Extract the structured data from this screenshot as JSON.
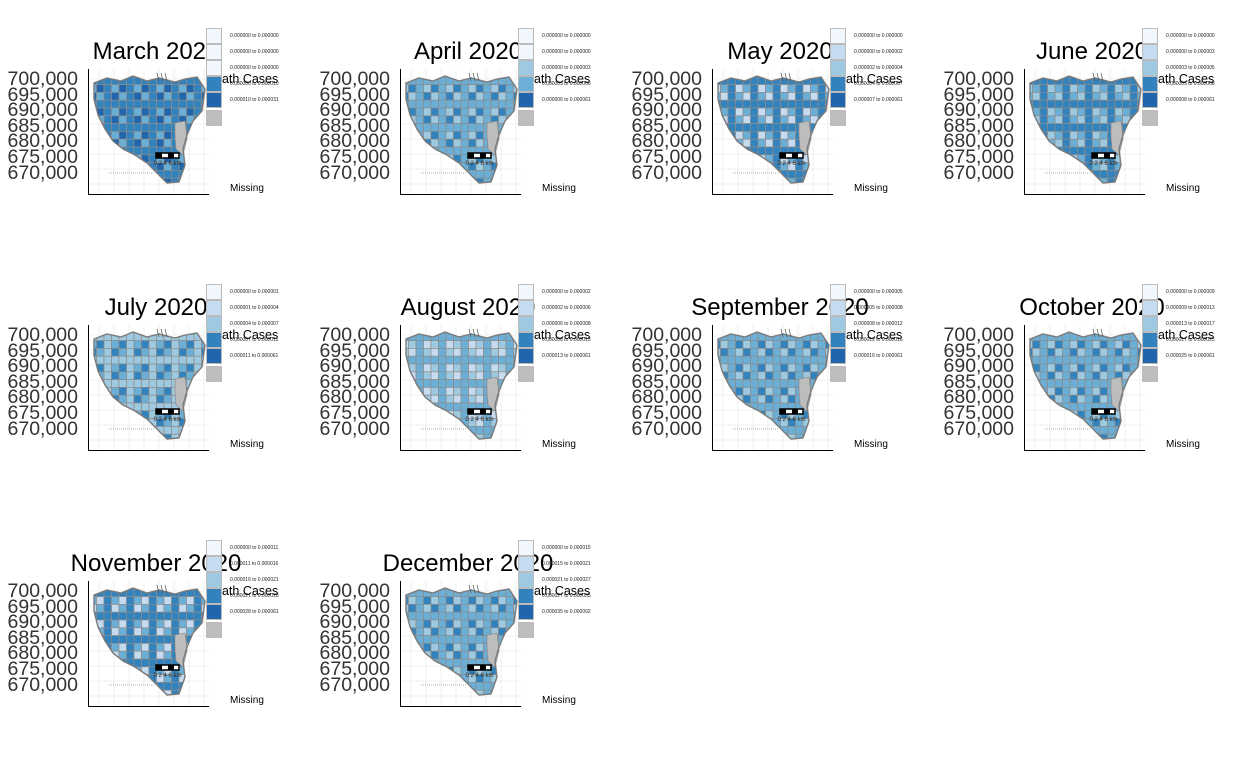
{
  "colors": {
    "c1": "#f2f7fd",
    "c2": "#c6dbef",
    "c3": "#9ecae1",
    "c4": "#6baed6",
    "c5": "#3182bd",
    "c6": "#2166ac",
    "missing": "#bdbdbd",
    "border": "#8c8c8c"
  },
  "y_ticks": [
    "700,000",
    "695,000",
    "690,000",
    "685,000",
    "680,000",
    "675,000",
    "670,000"
  ],
  "legend_title": "Death Cases",
  "missing_label": "Missing",
  "scalebar_label": "0 2 4 6 km",
  "panels": [
    {
      "title": "March 2020",
      "fill": [
        "c6",
        "c5",
        "c4"
      ],
      "legend": [
        "0.000000 to 0.000000",
        "0.000000 to 0.000000",
        "0.000000 to 0.000000",
        "0.000000 to 0.000010",
        "0.000010 to 0.000031"
      ],
      "sw": [
        "c1",
        "c1",
        "c1",
        "c5",
        "c6"
      ]
    },
    {
      "title": "April 2020",
      "fill": [
        "c4",
        "c3",
        "c5"
      ],
      "legend": [
        "0.000000 to 0.000000",
        "0.000000 to 0.000000",
        "0.000000 to 0.000003",
        "0.000003 to 0.000006",
        "0.000006 to 0.000061"
      ],
      "sw": [
        "c1",
        "c1",
        "c3",
        "c4",
        "c6"
      ]
    },
    {
      "title": "May 2020",
      "fill": [
        "c2",
        "c4",
        "c5"
      ],
      "legend": [
        "0.000000 to 0.000000",
        "0.000000 to 0.000002",
        "0.000002 to 0.000004",
        "0.000004 to 0.000007",
        "0.000007 to 0.000061"
      ],
      "sw": [
        "c1",
        "c2",
        "c3",
        "c5",
        "c6"
      ]
    },
    {
      "title": "June 2020",
      "fill": [
        "c4",
        "c5",
        "c3"
      ],
      "legend": [
        "0.000000 to 0.000000",
        "0.000000 to 0.000003",
        "0.000003 to 0.000005",
        "0.000005 to 0.000008",
        "0.000008 to 0.000061"
      ],
      "sw": [
        "c1",
        "c2",
        "c3",
        "c5",
        "c6"
      ]
    },
    {
      "title": "July 2020",
      "fill": [
        "c3",
        "c4",
        "c5"
      ],
      "legend": [
        "0.000000 to 0.000001",
        "0.000001 to 0.000004",
        "0.000004 to 0.000007",
        "0.000007 to 0.000011",
        "0.000011 to 0.000061"
      ],
      "sw": [
        "c1",
        "c2",
        "c3",
        "c5",
        "c6"
      ]
    },
    {
      "title": "August 2020",
      "fill": [
        "c2",
        "c3",
        "c4"
      ],
      "legend": [
        "0.000000 to 0.000002",
        "0.000002 to 0.000006",
        "0.000006 to 0.000008",
        "0.000008 to 0.000013",
        "0.000013 to 0.000061"
      ],
      "sw": [
        "c1",
        "c2",
        "c3",
        "c5",
        "c6"
      ]
    },
    {
      "title": "September 2020",
      "fill": [
        "c3",
        "c4",
        "c5"
      ],
      "legend": [
        "0.000000 to 0.000005",
        "0.000005 to 0.000008",
        "0.000008 to 0.000012",
        "0.000012 to 0.000016",
        "0.000016 to 0.000061"
      ],
      "sw": [
        "c1",
        "c2",
        "c3",
        "c5",
        "c6"
      ]
    },
    {
      "title": "October 2020",
      "fill": [
        "c4",
        "c3",
        "c5"
      ],
      "legend": [
        "0.000000 to 0.000009",
        "0.000009 to 0.000013",
        "0.000013 to 0.000017",
        "0.000017 to 0.000025",
        "0.000025 to 0.000061"
      ],
      "sw": [
        "c1",
        "c2",
        "c3",
        "c5",
        "c6"
      ]
    },
    {
      "title": "November 2020",
      "fill": [
        "c4",
        "c2",
        "c5"
      ],
      "legend": [
        "0.000000 to 0.000011",
        "0.000011 to 0.000016",
        "0.000016 to 0.000021",
        "0.000021 to 0.000028",
        "0.000028 to 0.000061"
      ],
      "sw": [
        "c1",
        "c2",
        "c3",
        "c5",
        "c6"
      ]
    },
    {
      "title": "December 2020",
      "fill": [
        "c3",
        "c4",
        "c5"
      ],
      "legend": [
        "0.000000 to 0.000015",
        "0.000015 to 0.000021",
        "0.000021 to 0.000027",
        "0.000027 to 0.000035",
        "0.000035 to 0.000092"
      ],
      "sw": [
        "c1",
        "c2",
        "c3",
        "c5",
        "c6"
      ]
    }
  ]
}
